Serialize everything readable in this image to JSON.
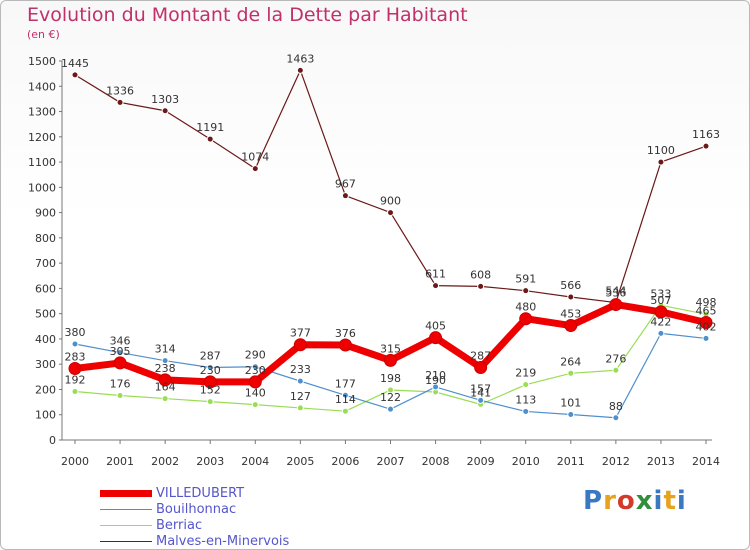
{
  "title": "Evolution du Montant de la Dette par Habitant",
  "unit": "(en €)",
  "logo_text": "Proxiti",
  "colors": {
    "title": "#c0306a",
    "VILLEDUBERT": "#ee0000",
    "Bouilhonnac": "#4f8fcc",
    "Berriac": "#99dd55",
    "Malves-en-Minervois": "#6b1818"
  },
  "chart_data": {
    "type": "line",
    "title": "Evolution du Montant de la Dette par Habitant",
    "ylabel": "(en €)",
    "x": [
      "2000",
      "2001",
      "2002",
      "2003",
      "2004",
      "2005",
      "2006",
      "2007",
      "2008",
      "2009",
      "2010",
      "2011",
      "2012",
      "2013",
      "2014"
    ],
    "ylim": [
      0,
      1500
    ],
    "yticks": [
      0,
      100,
      200,
      300,
      400,
      500,
      600,
      700,
      800,
      900,
      1000,
      1100,
      1200,
      1300,
      1400,
      1500
    ],
    "grid": false,
    "legend": "bottom-left",
    "series": [
      {
        "name": "Malves-en-Minervois",
        "values": [
          1445,
          1336,
          1303,
          1191,
          1074,
          1463,
          967,
          900,
          611,
          608,
          591,
          566,
          544,
          1100,
          1163
        ]
      },
      {
        "name": "Berriac",
        "values": [
          192,
          176,
          164,
          152,
          140,
          127,
          114,
          198,
          190,
          141,
          219,
          264,
          276,
          533,
          498
        ]
      },
      {
        "name": "Bouilhonnac",
        "values": [
          380,
          346,
          314,
          287,
          290,
          233,
          177,
          122,
          210,
          157,
          113,
          101,
          88,
          422,
          402
        ]
      },
      {
        "name": "VILLEDUBERT",
        "values": [
          283,
          305,
          238,
          230,
          230,
          377,
          376,
          315,
          405,
          287,
          480,
          453,
          536,
          507,
          465
        ]
      }
    ]
  },
  "legend_items": [
    {
      "name": "VILLEDUBERT"
    },
    {
      "name": "Bouilhonnac"
    },
    {
      "name": "Berriac"
    },
    {
      "name": "Malves-en-Minervois"
    }
  ]
}
